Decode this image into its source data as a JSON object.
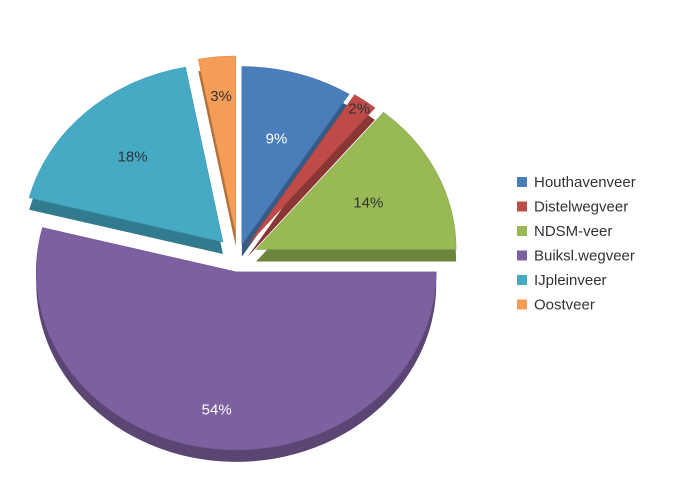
{
  "chart_data": {
    "type": "pie",
    "categories": [
      "Houthavenveer",
      "Distelwegveer",
      "NDSM-veer",
      "Buiksl.wegveer",
      "IJpleinveer",
      "Oostveer"
    ],
    "values": [
      9,
      2,
      14,
      54,
      18,
      3
    ],
    "labels": [
      "9%",
      "2%",
      "14%",
      "54%",
      "18%",
      "3%"
    ],
    "colors": [
      "#4a7ebb",
      "#be4b48",
      "#98b954",
      "#7d60a0",
      "#46aac5",
      "#f59d56"
    ],
    "exploded": true,
    "three_d": true,
    "legend_position": "right",
    "title": ""
  }
}
